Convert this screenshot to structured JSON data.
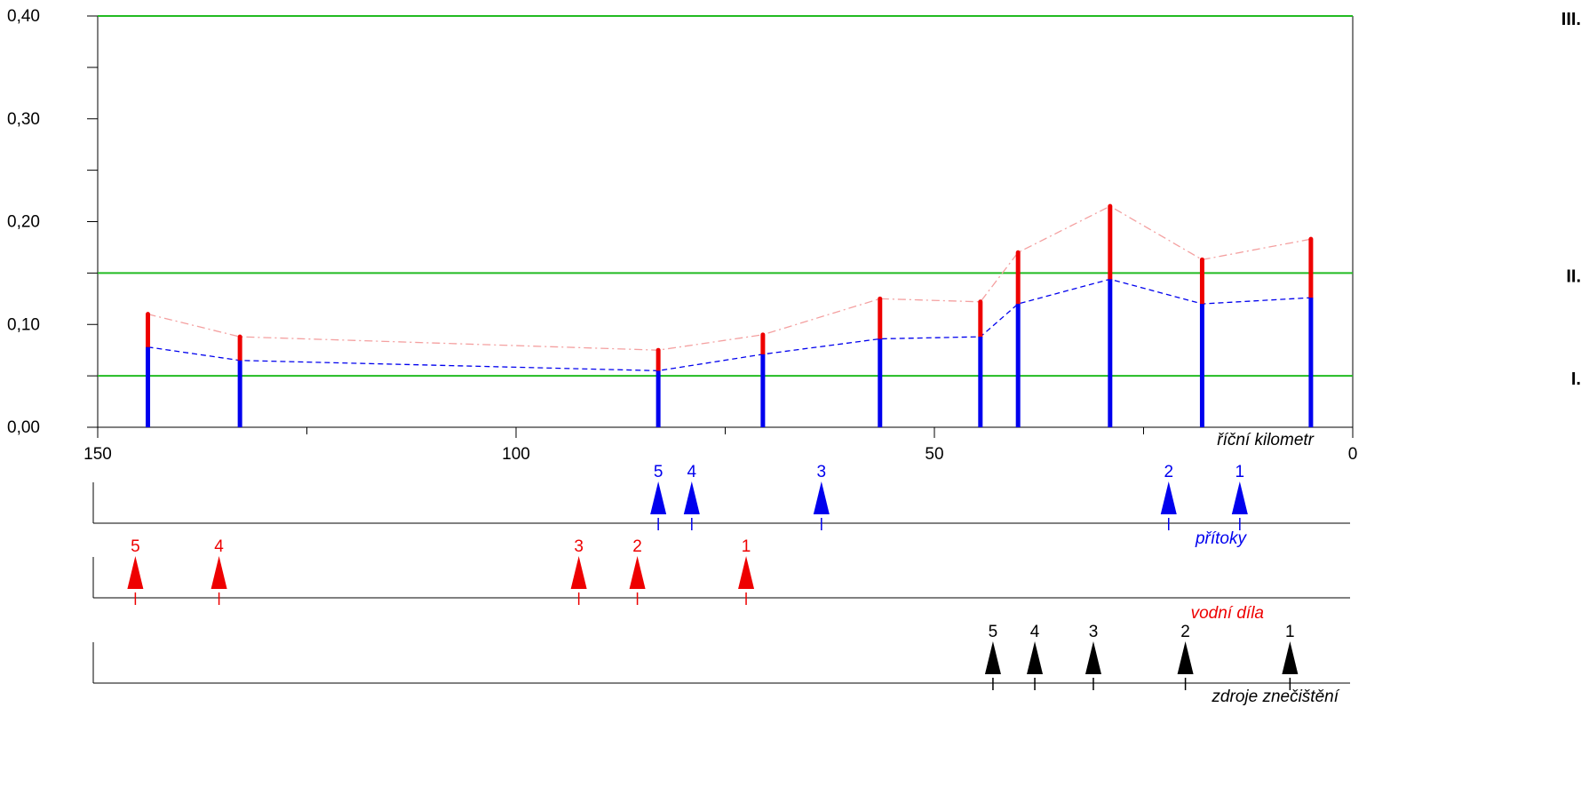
{
  "chart_data": {
    "type": "bar",
    "x_axis": {
      "label": "říční kilometr",
      "range": [
        150,
        0
      ],
      "reversed": true,
      "tick_labels": [
        "150",
        "100",
        "50",
        "0"
      ],
      "tick_values": [
        150,
        100,
        50,
        0
      ],
      "minor_ticks": [
        125,
        75,
        25
      ]
    },
    "y_axis": {
      "range": [
        0,
        0.4
      ],
      "tick_labels": [
        "0,00",
        "0,10",
        "0,20",
        "0,30",
        "0,40"
      ],
      "tick_values": [
        0,
        0.1,
        0.2,
        0.3,
        0.4
      ],
      "minor_ticks": [
        0.05,
        0.15,
        0.25,
        0.35
      ]
    },
    "thresholds": [
      {
        "label": "I.",
        "value": 0.05,
        "color": "#22bb22"
      },
      {
        "label": "II.",
        "value": 0.15,
        "color": "#22bb22"
      },
      {
        "label": "III.",
        "value": 0.4,
        "color": "#22bb22"
      }
    ],
    "x": [
      144,
      133,
      83,
      70.5,
      56.5,
      44.5,
      40,
      29,
      18,
      5
    ],
    "series": [
      {
        "color": "#0000ee",
        "values": [
          0.078,
          0.065,
          0.055,
          0.071,
          0.086,
          0.088,
          0.12,
          0.144,
          0.12,
          0.126
        ]
      },
      {
        "color": "#ee0000",
        "values": [
          0.11,
          0.088,
          0.075,
          0.09,
          0.125,
          0.122,
          0.17,
          0.215,
          0.163,
          0.183
        ]
      }
    ],
    "marker_rows": [
      {
        "label": "přítoky",
        "color": "#0000ee",
        "markers": [
          {
            "label": "5",
            "x": 83
          },
          {
            "label": "4",
            "x": 79
          },
          {
            "label": "3",
            "x": 63.5
          },
          {
            "label": "2",
            "x": 22
          },
          {
            "label": "1",
            "x": 13.5
          }
        ]
      },
      {
        "label": "vodní díla",
        "color": "#ee0000",
        "markers": [
          {
            "label": "5",
            "x": 145.5
          },
          {
            "label": "4",
            "x": 135.5
          },
          {
            "label": "3",
            "x": 92.5
          },
          {
            "label": "2",
            "x": 85.5
          },
          {
            "label": "1",
            "x": 72.5
          }
        ]
      },
      {
        "label": "zdroje znečištění",
        "color": "#000000",
        "markers": [
          {
            "label": "5",
            "x": 43
          },
          {
            "label": "4",
            "x": 38
          },
          {
            "label": "3",
            "x": 31
          },
          {
            "label": "2",
            "x": 20
          },
          {
            "label": "1",
            "x": 7.5
          }
        ]
      }
    ]
  }
}
